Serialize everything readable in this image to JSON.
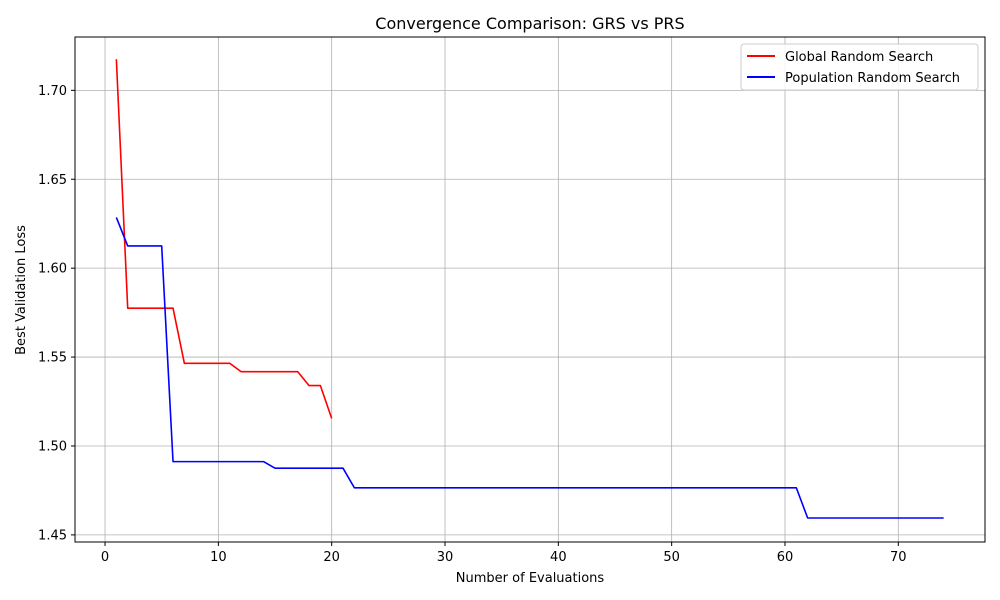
{
  "chart_data": {
    "type": "line",
    "title": "Convergence Comparison: GRS vs PRS",
    "xlabel": "Number of Evaluations",
    "ylabel": "Best Validation Loss",
    "xlim": [
      -2.65,
      77.65
    ],
    "ylim": [
      1.446,
      1.73
    ],
    "xticks": [
      0,
      10,
      20,
      30,
      40,
      50,
      60,
      70
    ],
    "yticks": [
      1.45,
      1.5,
      1.55,
      1.6,
      1.65,
      1.7
    ],
    "ytick_labels": [
      "1.45",
      "1.50",
      "1.55",
      "1.60",
      "1.65",
      "1.70"
    ],
    "grid": true,
    "legend_position": "top-right",
    "series": [
      {
        "name": "Global Random Search",
        "color": "#ff0000",
        "x": [
          1,
          2,
          3,
          4,
          5,
          6,
          7,
          8,
          9,
          10,
          11,
          12,
          13,
          14,
          15,
          16,
          17,
          18,
          19,
          20
        ],
        "y": [
          1.7175,
          1.5775,
          1.5775,
          1.5775,
          1.5775,
          1.5775,
          1.5465,
          1.5465,
          1.5465,
          1.5465,
          1.5465,
          1.5418,
          1.5418,
          1.5418,
          1.5418,
          1.5418,
          1.5418,
          1.534,
          1.534,
          1.5155
        ]
      },
      {
        "name": "Population Random Search",
        "color": "#0000ff",
        "x": [
          1,
          2,
          3,
          4,
          5,
          6,
          7,
          8,
          9,
          10,
          11,
          12,
          13,
          14,
          15,
          16,
          17,
          18,
          19,
          20,
          21,
          22,
          25,
          30,
          35,
          40,
          45,
          50,
          55,
          60,
          61,
          62,
          65,
          70,
          74
        ],
        "y": [
          1.6285,
          1.6125,
          1.6125,
          1.6125,
          1.6125,
          1.4912,
          1.4912,
          1.4912,
          1.4912,
          1.4912,
          1.4912,
          1.4912,
          1.4912,
          1.4912,
          1.4875,
          1.4875,
          1.4875,
          1.4875,
          1.4875,
          1.4875,
          1.4875,
          1.4765,
          1.4765,
          1.4765,
          1.4765,
          1.4765,
          1.4765,
          1.4765,
          1.4765,
          1.4765,
          1.4765,
          1.4595,
          1.4595,
          1.4595,
          1.4595
        ]
      }
    ]
  }
}
